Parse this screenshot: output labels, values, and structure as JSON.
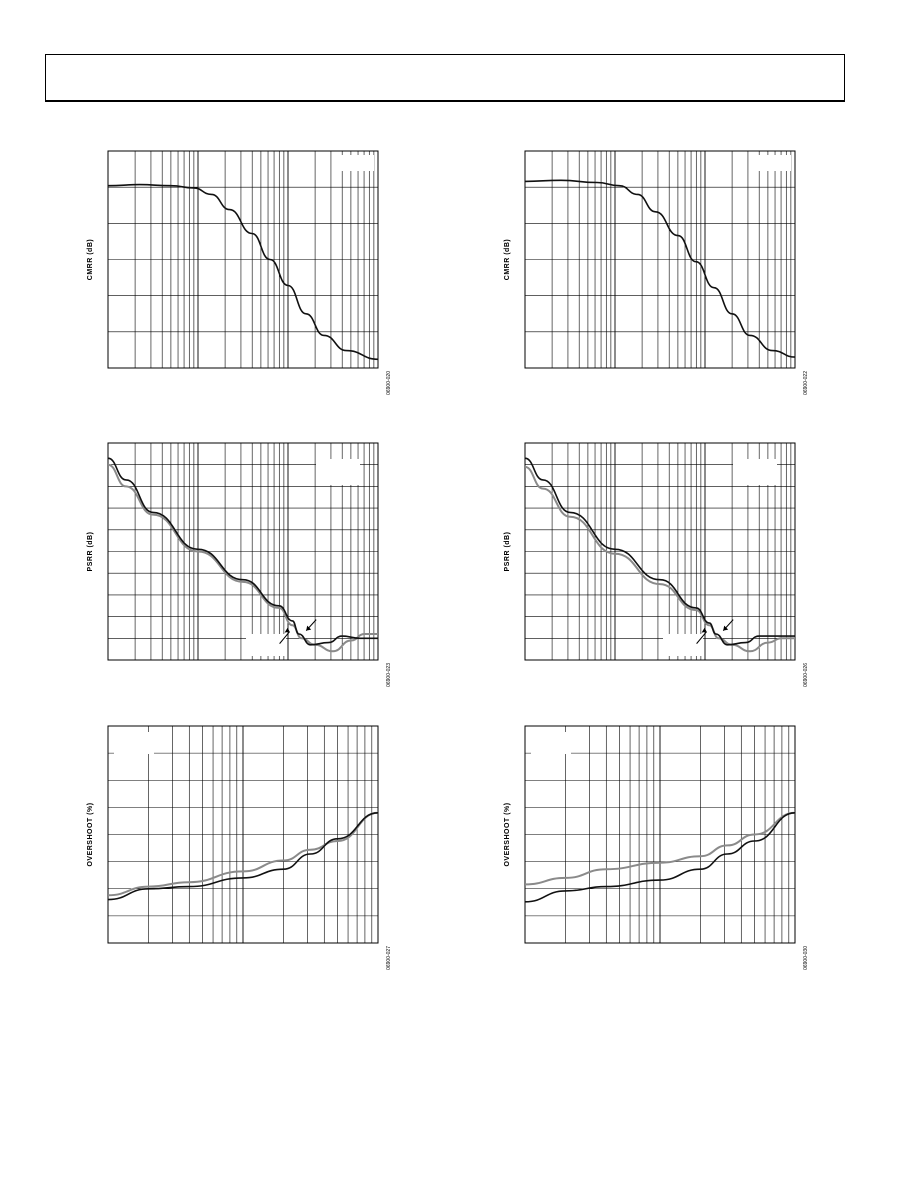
{
  "page": {
    "header_box": ""
  },
  "charts": [
    {
      "id": "cmrr-left",
      "type": "line",
      "ylabel": "CMRR (dB)",
      "figure_code": "06900-020",
      "logx": true,
      "decades": 3,
      "grid_rows": 6,
      "legend_box": true,
      "legend_box_dashed": false,
      "series": [
        {
          "color": "#111111",
          "points": [
            [
              0,
              0.16
            ],
            [
              0.35,
              0.155
            ],
            [
              0.7,
              0.16
            ],
            [
              0.95,
              0.17
            ],
            [
              1.15,
              0.2
            ],
            [
              1.35,
              0.27
            ],
            [
              1.6,
              0.38
            ],
            [
              1.8,
              0.5
            ],
            [
              2.0,
              0.62
            ],
            [
              2.2,
              0.75
            ],
            [
              2.4,
              0.85
            ],
            [
              2.65,
              0.92
            ],
            [
              3.0,
              0.96
            ]
          ]
        }
      ]
    },
    {
      "id": "cmrr-right",
      "type": "line",
      "ylabel": "CMRR (dB)",
      "figure_code": "06900-022",
      "logx": true,
      "decades": 3,
      "grid_rows": 6,
      "legend_box": true,
      "legend_box_dashed": false,
      "series": [
        {
          "color": "#111111",
          "points": [
            [
              0,
              0.14
            ],
            [
              0.4,
              0.135
            ],
            [
              0.8,
              0.145
            ],
            [
              1.05,
              0.16
            ],
            [
              1.25,
              0.2
            ],
            [
              1.45,
              0.28
            ],
            [
              1.7,
              0.39
            ],
            [
              1.9,
              0.51
            ],
            [
              2.1,
              0.63
            ],
            [
              2.3,
              0.75
            ],
            [
              2.5,
              0.85
            ],
            [
              2.75,
              0.92
            ],
            [
              3.0,
              0.95
            ]
          ]
        }
      ]
    },
    {
      "id": "psrr-left",
      "type": "line",
      "ylabel": "PSRR (dB)",
      "figure_code": "06900-023",
      "logx": true,
      "decades": 3,
      "grid_rows": 10,
      "legend_box": true,
      "legend_box_dashed": true,
      "series": [
        {
          "color": "#8a8a8a",
          "points": [
            [
              0,
              0.1
            ],
            [
              0.2,
              0.2
            ],
            [
              0.5,
              0.33
            ],
            [
              1.0,
              0.5
            ],
            [
              1.5,
              0.64
            ],
            [
              1.9,
              0.76
            ],
            [
              2.05,
              0.84
            ],
            [
              2.15,
              0.9
            ],
            [
              2.3,
              0.93
            ],
            [
              2.5,
              0.96
            ],
            [
              2.7,
              0.91
            ],
            [
              2.85,
              0.88
            ],
            [
              3.0,
              0.88
            ]
          ]
        },
        {
          "color": "#111111",
          "points": [
            [
              0,
              0.07
            ],
            [
              0.2,
              0.17
            ],
            [
              0.5,
              0.32
            ],
            [
              1.0,
              0.49
            ],
            [
              1.5,
              0.63
            ],
            [
              1.9,
              0.75
            ],
            [
              2.05,
              0.82
            ],
            [
              2.12,
              0.88
            ],
            [
              2.25,
              0.93
            ],
            [
              2.45,
              0.92
            ],
            [
              2.6,
              0.89
            ],
            [
              2.8,
              0.9
            ],
            [
              3.0,
              0.9
            ]
          ]
        }
      ]
    },
    {
      "id": "psrr-right",
      "type": "line",
      "ylabel": "PSRR (dB)",
      "figure_code": "06900-026",
      "logx": true,
      "decades": 3,
      "grid_rows": 10,
      "legend_box": true,
      "legend_box_dashed": true,
      "series": [
        {
          "color": "#8a8a8a",
          "points": [
            [
              0,
              0.11
            ],
            [
              0.2,
              0.21
            ],
            [
              0.5,
              0.34
            ],
            [
              1.0,
              0.51
            ],
            [
              1.5,
              0.65
            ],
            [
              1.9,
              0.77
            ],
            [
              2.05,
              0.84
            ],
            [
              2.15,
              0.9
            ],
            [
              2.3,
              0.93
            ],
            [
              2.5,
              0.96
            ],
            [
              2.7,
              0.92
            ],
            [
              2.85,
              0.9
            ],
            [
              3.0,
              0.9
            ]
          ]
        },
        {
          "color": "#111111",
          "points": [
            [
              0,
              0.07
            ],
            [
              0.2,
              0.17
            ],
            [
              0.5,
              0.32
            ],
            [
              1.0,
              0.49
            ],
            [
              1.5,
              0.63
            ],
            [
              1.9,
              0.76
            ],
            [
              2.05,
              0.83
            ],
            [
              2.12,
              0.88
            ],
            [
              2.25,
              0.93
            ],
            [
              2.45,
              0.92
            ],
            [
              2.6,
              0.89
            ],
            [
              2.8,
              0.89
            ],
            [
              3.0,
              0.89
            ]
          ]
        }
      ]
    },
    {
      "id": "overshoot-left",
      "type": "line",
      "ylabel": "OVERSHOOT (%)",
      "figure_code": "06900-027",
      "logx": true,
      "decades": 2,
      "grid_rows": 8,
      "legend_box": true,
      "legend_box_dashed": false,
      "series": [
        {
          "color": "#8a8a8a",
          "points": [
            [
              0,
              0.78
            ],
            [
              0.3,
              0.74
            ],
            [
              0.6,
              0.72
            ],
            [
              1.0,
              0.67
            ],
            [
              1.3,
              0.62
            ],
            [
              1.5,
              0.57
            ],
            [
              1.7,
              0.53
            ],
            [
              2.0,
              0.4
            ]
          ]
        },
        {
          "color": "#111111",
          "points": [
            [
              0,
              0.8
            ],
            [
              0.3,
              0.75
            ],
            [
              0.6,
              0.74
            ],
            [
              1.0,
              0.7
            ],
            [
              1.3,
              0.66
            ],
            [
              1.5,
              0.59
            ],
            [
              1.7,
              0.52
            ],
            [
              2.0,
              0.4
            ]
          ]
        }
      ]
    },
    {
      "id": "overshoot-right",
      "type": "line",
      "ylabel": "OVERSHOOT (%)",
      "figure_code": "06900-030",
      "logx": true,
      "decades": 2,
      "grid_rows": 8,
      "legend_box": true,
      "legend_box_dashed": false,
      "series": [
        {
          "color": "#8a8a8a",
          "points": [
            [
              0,
              0.73
            ],
            [
              0.3,
              0.7
            ],
            [
              0.6,
              0.66
            ],
            [
              1.0,
              0.63
            ],
            [
              1.3,
              0.6
            ],
            [
              1.5,
              0.55
            ],
            [
              1.7,
              0.5
            ],
            [
              2.0,
              0.4
            ]
          ]
        },
        {
          "color": "#111111",
          "points": [
            [
              0,
              0.81
            ],
            [
              0.3,
              0.76
            ],
            [
              0.6,
              0.74
            ],
            [
              1.0,
              0.71
            ],
            [
              1.3,
              0.66
            ],
            [
              1.5,
              0.59
            ],
            [
              1.7,
              0.53
            ],
            [
              2.0,
              0.4
            ]
          ]
        }
      ]
    }
  ],
  "chart_data": [
    {
      "type": "line",
      "ylabel": "CMRR (dB)",
      "xlabel": "",
      "title": "",
      "x_scale": "log"
    },
    {
      "type": "line",
      "ylabel": "CMRR (dB)",
      "xlabel": "",
      "title": "",
      "x_scale": "log"
    },
    {
      "type": "line",
      "ylabel": "PSRR (dB)",
      "xlabel": "",
      "title": "",
      "x_scale": "log"
    },
    {
      "type": "line",
      "ylabel": "PSRR (dB)",
      "xlabel": "",
      "title": "",
      "x_scale": "log"
    },
    {
      "type": "line",
      "ylabel": "OVERSHOOT (%)",
      "xlabel": "",
      "title": "",
      "x_scale": "log"
    },
    {
      "type": "line",
      "ylabel": "OVERSHOOT (%)",
      "xlabel": "",
      "title": "",
      "x_scale": "log"
    }
  ]
}
